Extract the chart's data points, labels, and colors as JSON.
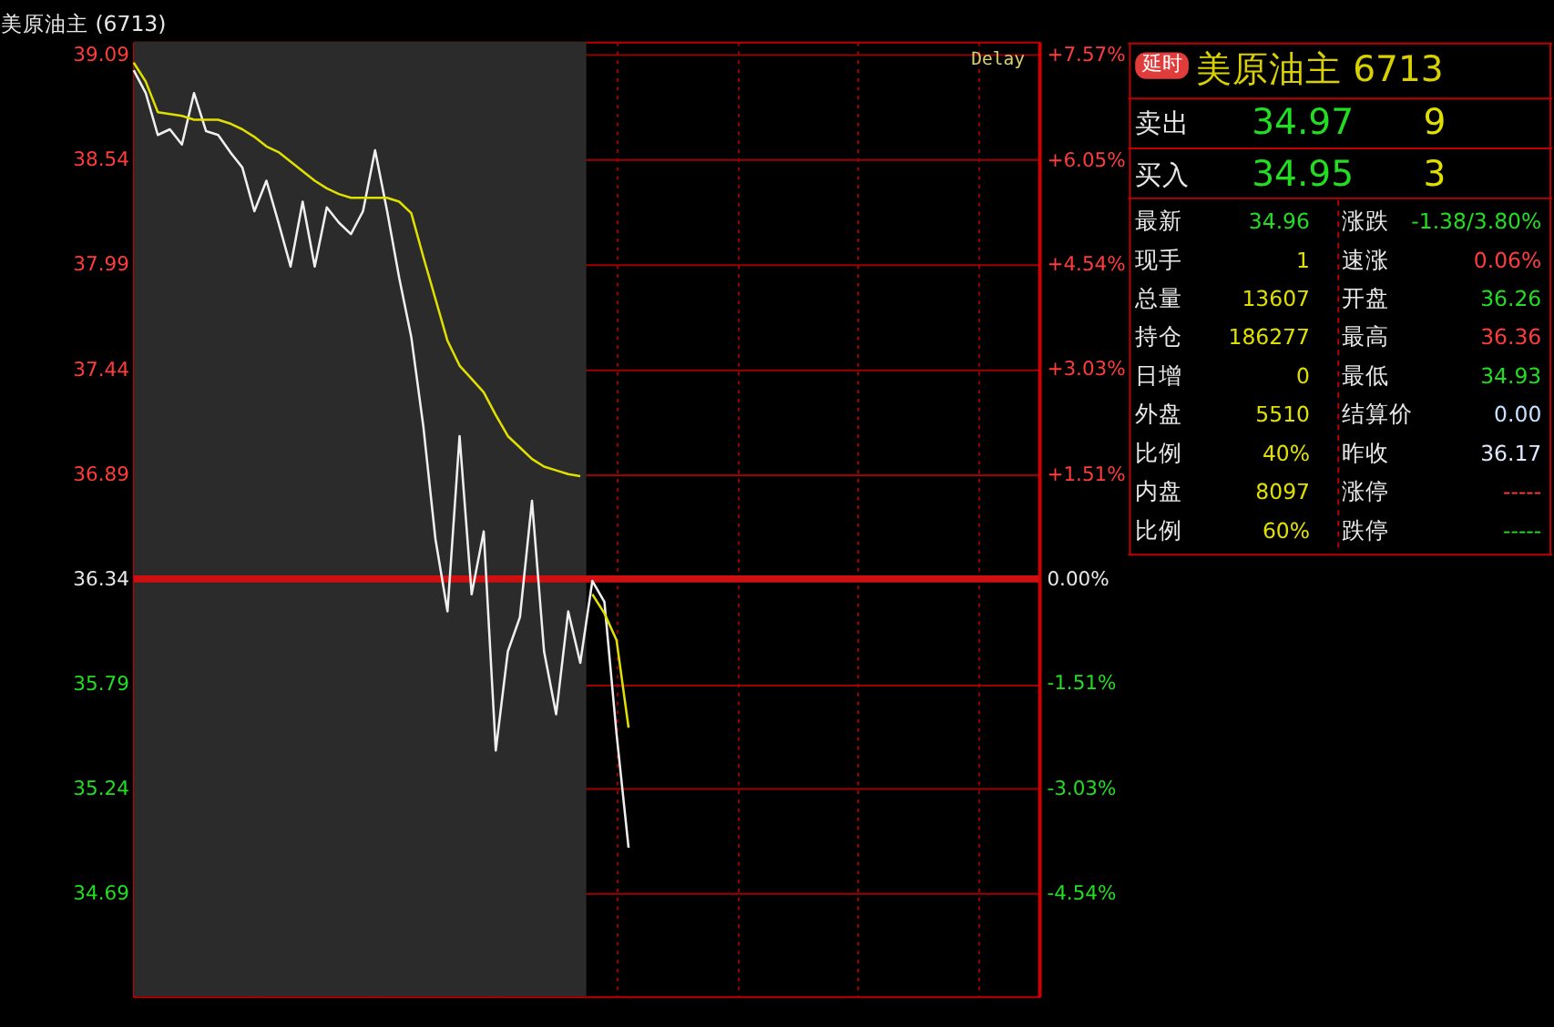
{
  "chart_data": {
    "type": "line",
    "title": "美原油主 (6713)",
    "categories": [
      null,
      null,
      null,
      null,
      null,
      null,
      null,
      null,
      null,
      null,
      null,
      null,
      null,
      null,
      null,
      null,
      null,
      null,
      null,
      null,
      null,
      null,
      null,
      null,
      null,
      null,
      null,
      null,
      null,
      null,
      null,
      null,
      null,
      null,
      null,
      null,
      null,
      null,
      null,
      null,
      null,
      null,
      null,
      null,
      null,
      null,
      null,
      null,
      null,
      null,
      null,
      null,
      null,
      null,
      null,
      null,
      null,
      null,
      null,
      null,
      null,
      null,
      null,
      null,
      null,
      null,
      null,
      null,
      null,
      null,
      null,
      null,
      null,
      null,
      null,
      null
    ],
    "ylim": [
      34.15,
      39.16
    ],
    "yticks": [
      34.69,
      35.24,
      35.79,
      36.34,
      36.89,
      37.44,
      37.99,
      38.54,
      39.09
    ],
    "y2lim": [
      -6.03,
      7.76
    ],
    "y2ticks": [
      {
        "value": -4.54,
        "label": "-4.54%"
      },
      {
        "value": -3.03,
        "label": "-3.03%"
      },
      {
        "value": -1.51,
        "label": "-1.51%"
      },
      {
        "value": 0,
        "label": "0.00%"
      },
      {
        "value": 1.51,
        "label": "+1.51%"
      },
      {
        "value": 3.03,
        "label": "+3.03%"
      },
      {
        "value": 4.54,
        "label": "+4.54%"
      },
      {
        "value": 6.05,
        "label": "+6.05%"
      },
      {
        "value": 7.57,
        "label": "+7.57%"
      }
    ],
    "grid": true,
    "ref_lines": [
      {
        "axis": "y",
        "value": 36.34,
        "color": "#d01010"
      }
    ],
    "annotations": [
      "Delay",
      "美原油主  6713",
      "延时",
      "卖出",
      "34.97",
      "9",
      "买入",
      "34.95",
      "3",
      "最新",
      "34.96",
      "涨跌",
      "-1.38/3.80%",
      "现手",
      "1",
      "速涨",
      "0.06%",
      "总量",
      "13607",
      "开盘",
      "36.26",
      "持仓",
      "186277",
      "最高",
      "36.36",
      "日增",
      "0",
      "最低",
      "34.93",
      "外盘",
      "5510",
      "结算价",
      "0.00",
      "比例",
      "40%",
      "昨收",
      "36.17",
      "内盘",
      "8097",
      "涨停",
      "-----",
      "比例",
      "60%",
      "跌停",
      "-----"
    ],
    "series": [
      {
        "color": "#f0f0f0",
        "values": [
          39.01,
          38.89,
          38.67,
          38.7,
          38.62,
          38.89,
          38.69,
          38.67,
          38.58,
          38.5,
          38.27,
          38.43,
          38.21,
          37.98,
          38.32,
          37.98,
          38.29,
          38.21,
          38.15,
          38.27,
          38.59,
          38.27,
          37.92,
          37.61,
          37.14,
          36.55,
          36.17,
          37.09,
          36.26,
          36.59,
          35.44,
          35.96,
          36.14,
          36.75,
          35.96,
          35.63,
          36.17,
          35.9,
          36.33,
          36.22,
          35.53,
          34.93,
          null,
          null,
          null,
          null,
          null,
          null,
          null,
          null,
          null,
          null,
          null,
          null,
          null,
          null,
          null,
          null,
          null,
          null,
          null,
          null,
          null,
          null,
          null,
          null,
          null,
          null,
          null,
          null,
          null,
          null,
          null,
          null,
          null,
          null
        ]
      },
      {
        "color": "#e0e000",
        "values": [
          39.05,
          38.95,
          38.79,
          38.78,
          38.77,
          38.75,
          38.75,
          38.75,
          38.73,
          38.7,
          38.66,
          38.61,
          38.58,
          38.53,
          38.48,
          38.43,
          38.39,
          38.36,
          38.34,
          38.34,
          38.34,
          38.34,
          38.32,
          38.26,
          38.03,
          37.81,
          37.59,
          37.46,
          37.39,
          37.32,
          37.2,
          37.09,
          37.03,
          36.97,
          36.93,
          36.91,
          36.89,
          36.88,
          null,
          null,
          null,
          null,
          null,
          null,
          null,
          null,
          null,
          null,
          null,
          null,
          null,
          null,
          null,
          null,
          null,
          null,
          null,
          null,
          null,
          null,
          null,
          null,
          null,
          null,
          null,
          null,
          null,
          null,
          null,
          null,
          null,
          null,
          null,
          null,
          null,
          null
        ]
      },
      {
        "color": "#e0e000",
        "values": [
          null,
          null,
          null,
          null,
          null,
          null,
          null,
          null,
          null,
          null,
          null,
          null,
          null,
          null,
          null,
          null,
          null,
          null,
          null,
          null,
          null,
          null,
          null,
          null,
          null,
          null,
          null,
          null,
          null,
          null,
          null,
          null,
          null,
          null,
          null,
          null,
          null,
          null,
          36.26,
          36.16,
          36.02,
          35.56,
          null,
          null,
          null,
          null,
          null,
          null,
          null,
          null,
          null,
          null,
          null,
          null,
          null,
          null,
          null,
          null,
          null,
          null,
          null,
          null,
          null,
          null,
          null,
          null,
          null,
          null,
          null,
          null,
          null,
          null,
          null,
          null,
          null,
          null
        ]
      }
    ]
  }
}
